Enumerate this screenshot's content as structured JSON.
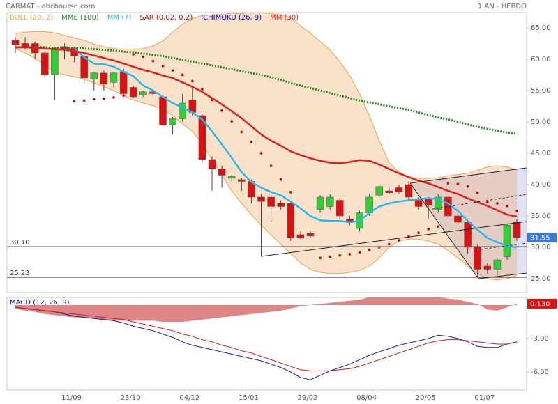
{
  "chart_data": [
    {
      "type": "candlestick",
      "title": "CARMAT - abcbourse.com",
      "subtitle": "1 AN - HEBDO",
      "categories": [
        null,
        null,
        null,
        null,
        null,
        null,
        "11/09",
        null,
        null,
        null,
        null,
        null,
        "23/10",
        null,
        null,
        null,
        null,
        null,
        "04/12",
        null,
        null,
        null,
        null,
        null,
        "15/01",
        null,
        null,
        null,
        null,
        null,
        "29/02",
        null,
        null,
        null,
        null,
        null,
        "08/04",
        null,
        null,
        null,
        null,
        null,
        "20/05",
        null,
        null,
        null,
        null,
        null,
        "01/07",
        null,
        null,
        null
      ],
      "open": [
        63.0,
        62.5,
        62.5,
        61.0,
        57.5,
        62.0,
        61.8,
        60.5,
        56.8,
        57.8,
        56.3,
        58.0,
        55.5,
        54.3,
        54.8,
        54.0,
        49.5,
        50.5,
        53.5,
        51.0,
        44.0,
        42.5,
        41.0,
        40.8,
        40.5,
        38.0,
        38.0,
        37.0,
        37.0,
        32.0,
        32.2,
        36.0,
        36.5,
        37.5,
        34.5,
        33.0,
        35.5,
        38.3,
        39.0,
        39.5,
        40.0,
        37.5,
        37.7,
        36.0,
        38.0,
        35.0,
        34.0,
        30.0,
        27.0,
        26.5,
        28.5,
        34.0
      ],
      "high": [
        63.5,
        63.5,
        62.8,
        61.3,
        62.0,
        62.5,
        62.0,
        60.8,
        58.0,
        58.2,
        58.0,
        58.5,
        55.8,
        55.0,
        55.0,
        54.3,
        50.8,
        54.5,
        55.5,
        51.3,
        44.5,
        43.0,
        41.5,
        41.0,
        40.8,
        38.5,
        38.5,
        37.5,
        37.3,
        32.5,
        32.5,
        38.3,
        38.5,
        37.8,
        35.0,
        35.8,
        38.5,
        40.0,
        39.5,
        40.0,
        40.5,
        38.0,
        38.0,
        38.5,
        38.3,
        35.5,
        34.5,
        30.5,
        27.5,
        28.3,
        33.8,
        34.5
      ],
      "low": [
        61.0,
        61.5,
        60.0,
        57.0,
        53.5,
        60.0,
        59.5,
        56.0,
        55.0,
        55.0,
        55.5,
        54.0,
        53.8,
        54.0,
        54.3,
        49.0,
        48.0,
        50.0,
        51.0,
        43.5,
        39.0,
        39.5,
        40.5,
        39.0,
        37.0,
        28.5,
        34.0,
        36.0,
        31.0,
        31.3,
        31.5,
        35.5,
        36.0,
        34.5,
        33.5,
        32.5,
        35.0,
        38.0,
        38.5,
        38.5,
        37.5,
        36.0,
        34.5,
        35.5,
        34.5,
        33.5,
        29.0,
        25.2,
        25.8,
        25.5,
        28.0,
        31.0
      ],
      "close": [
        62.3,
        62.0,
        61.0,
        57.5,
        61.8,
        61.5,
        60.5,
        57.0,
        57.8,
        56.0,
        57.8,
        54.5,
        54.0,
        54.8,
        54.5,
        49.5,
        50.5,
        53.0,
        51.5,
        44.0,
        42.5,
        41.5,
        41.3,
        40.5,
        38.0,
        37.3,
        36.5,
        36.5,
        31.5,
        31.5,
        31.8,
        38.0,
        38.0,
        35.0,
        34.0,
        35.5,
        38.0,
        39.7,
        38.7,
        38.8,
        38.0,
        36.5,
        36.7,
        38.0,
        35.0,
        34.0,
        30.0,
        26.5,
        26.5,
        28.0,
        33.5,
        31.55
      ],
      "up_color": "#33cc33",
      "down_color": "#dd1111",
      "series": [
        {
          "name": "BOLL (20, 2)",
          "color": "#f0a050",
          "style": "band",
          "upper": [
            64.1,
            64.3,
            64.4,
            64.4,
            64.2,
            63.8,
            63.4,
            63.0,
            62.4,
            62.0,
            61.7,
            61.6,
            61.6,
            61.7,
            62.1,
            62.9,
            64.3,
            65.6,
            66.5,
            67.0,
            67.1,
            67.2,
            67.3,
            67.3,
            67.4,
            67.4,
            67.3,
            67.1,
            66.6,
            65.3,
            64.2,
            62.8,
            61.5,
            59.6,
            57.4,
            54.5,
            51.0,
            47.0,
            43.5,
            42.0,
            41.2,
            41.0,
            41.0,
            41.1,
            41.4,
            41.6,
            41.8,
            42.3,
            42.8,
            43.0,
            42.8,
            42.3
          ],
          "lower": [
            61.7,
            61.0,
            60.2,
            59.0,
            58.0,
            57.5,
            57.2,
            56.8,
            56.2,
            55.6,
            55.0,
            54.2,
            53.5,
            53.0,
            52.6,
            52.0,
            51.0,
            49.7,
            48.5,
            46.5,
            44.0,
            41.5,
            39.0,
            37.0,
            35.2,
            33.5,
            32.0,
            30.5,
            29.0,
            27.5,
            26.5,
            26.0,
            25.8,
            25.8,
            26.0,
            26.3,
            27.0,
            28.3,
            30.0,
            31.0,
            31.3,
            31.3,
            31.0,
            30.5,
            29.5,
            28.3,
            27.0,
            25.8,
            25.0,
            24.8,
            25.0,
            25.5
          ]
        },
        {
          "name": "MME (100)",
          "color": "#1a8a1a",
          "style": "dotted",
          "values": [
            61.9,
            61.9,
            61.9,
            61.9,
            61.8,
            61.8,
            61.8,
            61.7,
            61.6,
            61.5,
            61.4,
            61.2,
            61.1,
            60.9,
            60.7,
            60.5,
            60.2,
            59.9,
            59.6,
            59.3,
            59.0,
            58.7,
            58.4,
            58.1,
            57.8,
            57.5,
            57.1,
            56.7,
            56.2,
            55.8,
            55.4,
            55.0,
            54.6,
            54.2,
            53.8,
            53.4,
            53.1,
            52.8,
            52.5,
            52.2,
            51.9,
            51.5,
            51.1,
            50.7,
            50.4,
            50.0,
            49.6,
            49.2,
            48.9,
            48.6,
            48.3,
            48.1
          ]
        },
        {
          "name": "MM (7)",
          "color": "#22bbee",
          "style": "line",
          "values": [
            null,
            null,
            null,
            null,
            null,
            null,
            61.7,
            60.3,
            59.3,
            59.2,
            58.8,
            58.0,
            57.3,
            55.8,
            55.0,
            54.0,
            53.0,
            52.3,
            51.5,
            50.4,
            48.5,
            46.4,
            44.3,
            42.0,
            40.4,
            39.5,
            38.8,
            38.3,
            37.3,
            36.2,
            35.0,
            34.3,
            34.2,
            34.2,
            34.0,
            34.2,
            35.5,
            36.5,
            37.0,
            37.3,
            37.5,
            37.7,
            37.8,
            37.7,
            37.0,
            35.8,
            34.2,
            32.8,
            31.5,
            30.8,
            30.2,
            30.0
          ]
        },
        {
          "name": "SAR (0.02, 0.2)",
          "color": "#cc0000",
          "style": "dots",
          "values": [
            null,
            null,
            null,
            null,
            null,
            null,
            53.3,
            53.4,
            53.6,
            53.7,
            53.9,
            54.2,
            60.8,
            60.4,
            59.7,
            58.9,
            58.2,
            57.5,
            56.5,
            55.2,
            53.5,
            51.8,
            50.1,
            48.4,
            46.8,
            45.0,
            43.0,
            40.8,
            38.8,
            null,
            null,
            28.3,
            28.5,
            28.7,
            28.9,
            29.2,
            29.6,
            30.0,
            30.5,
            31.1,
            31.7,
            32.3,
            32.9,
            33.3,
            40.2,
            40.1,
            39.7,
            38.7,
            37.2,
            37.0,
            36.6,
            35.8
          ]
        },
        {
          "name": "ICHIMOKU (26, 9)",
          "color": "#0000cc",
          "style": "line"
        },
        {
          "name": "MM (30)",
          "color": "#dd2020",
          "style": "line",
          "values": [
            61.9,
            61.9,
            61.8,
            61.7,
            61.6,
            61.5,
            61.3,
            61.0,
            60.6,
            60.2,
            59.8,
            59.3,
            58.8,
            58.3,
            57.9,
            57.4,
            57.0,
            56.3,
            55.6,
            54.8,
            53.8,
            52.8,
            51.7,
            50.6,
            49.3,
            48.0,
            47.0,
            46.2,
            45.3,
            44.7,
            44.2,
            43.8,
            43.5,
            43.4,
            43.6,
            43.9,
            43.8,
            43.2,
            42.5,
            41.8,
            41.2,
            40.6,
            40.2,
            39.6,
            39.0,
            38.5,
            37.8,
            37.2,
            36.6,
            35.9,
            35.2,
            34.9
          ]
        }
      ],
      "hlines": [
        {
          "value": 30.1,
          "label": "30.10"
        },
        {
          "value": 25.23,
          "label": "25.23"
        }
      ],
      "last_price": 31.55,
      "ylim": [
        22.78,
        67.44
      ],
      "yticks": [
        {
          "value": 25,
          "label": "25.00"
        },
        {
          "value": 30,
          "label": "30.00"
        },
        {
          "value": 35,
          "label": "35.00"
        },
        {
          "value": 40,
          "label": "40.00"
        },
        {
          "value": 45,
          "label": "45.00"
        },
        {
          "value": 50,
          "label": "50.00"
        },
        {
          "value": 55,
          "label": "55.00"
        },
        {
          "value": 60,
          "label": "60.00"
        },
        {
          "value": 65,
          "label": "65.00"
        }
      ]
    },
    {
      "type": "macd",
      "title": "MACD (12, 26, 9)",
      "series": [
        {
          "color": "#d87070",
          "style": "area",
          "values": [
            -0.3,
            -0.5,
            -0.6,
            -0.8,
            -0.9,
            -1.0,
            -1.1,
            -1.1,
            -1.2,
            -1.3,
            -1.4,
            -1.4,
            -1.4,
            -1.4,
            -1.4,
            -1.5,
            -1.5,
            -1.5,
            -1.4,
            -1.3,
            -1.2,
            -1.1,
            -1.0,
            -0.9,
            -0.8,
            -0.7,
            -0.6,
            -0.5,
            -0.3,
            -0.1,
            0.0,
            0.1,
            0.2,
            0.3,
            0.4,
            0.5,
            0.7,
            0.7,
            0.7,
            0.7,
            0.7,
            0.7,
            0.7,
            0.7,
            0.6,
            0.5,
            0.3,
            0.1,
            -0.4,
            -0.5,
            -0.2,
            0.13
          ]
        },
        {
          "color": "#1a1aaa",
          "style": "line",
          "values": [
            -0.19,
            -0.3,
            -0.4,
            -0.5,
            -0.6,
            -0.8,
            -1.0,
            -1.1,
            -1.2,
            -1.3,
            -1.4,
            -1.6,
            -1.9,
            -2.1,
            -2.3,
            -2.6,
            -2.9,
            -3.3,
            -3.6,
            -3.8,
            -4.0,
            -4.2,
            -4.4,
            -4.6,
            -4.8,
            -5.0,
            -5.3,
            -5.6,
            -6.0,
            -6.5,
            -6.7,
            -6.3,
            -5.9,
            -5.6,
            -5.3,
            -4.9,
            -4.5,
            -4.2,
            -3.9,
            -3.6,
            -3.4,
            -3.2,
            -3.0,
            -2.7,
            -2.8,
            -3.0,
            -3.3,
            -3.7,
            -3.8,
            -3.8,
            -3.5,
            -3.3
          ]
        },
        {
          "color": "#cc2020",
          "style": "line",
          "values": [
            -0.2,
            -0.3,
            -0.4,
            -0.5,
            -0.6,
            -0.7,
            -0.8,
            -0.9,
            -1.0,
            -1.1,
            -1.2,
            -1.3,
            -1.5,
            -1.7,
            -1.9,
            -2.1,
            -2.3,
            -2.6,
            -2.8,
            -3.1,
            -3.3,
            -3.6,
            -3.8,
            -4.1,
            -4.3,
            -4.6,
            -4.9,
            -5.2,
            -5.5,
            -5.8,
            -5.9,
            -5.9,
            -5.9,
            -5.8,
            -5.7,
            -5.5,
            -5.2,
            -4.9,
            -4.6,
            -4.3,
            -4.0,
            -3.7,
            -3.4,
            -3.2,
            -3.1,
            -3.1,
            -3.2,
            -3.3,
            -3.4,
            -3.5,
            -3.5,
            -3.3
          ]
        }
      ],
      "last_value": {
        "value": 0.13,
        "label": "0.130"
      },
      "ylim": [
        -7.625,
        0.69
      ],
      "yticks": [
        {
          "value": -3,
          "label": "-3.00"
        },
        {
          "value": -6,
          "label": "-6.00"
        }
      ]
    }
  ]
}
